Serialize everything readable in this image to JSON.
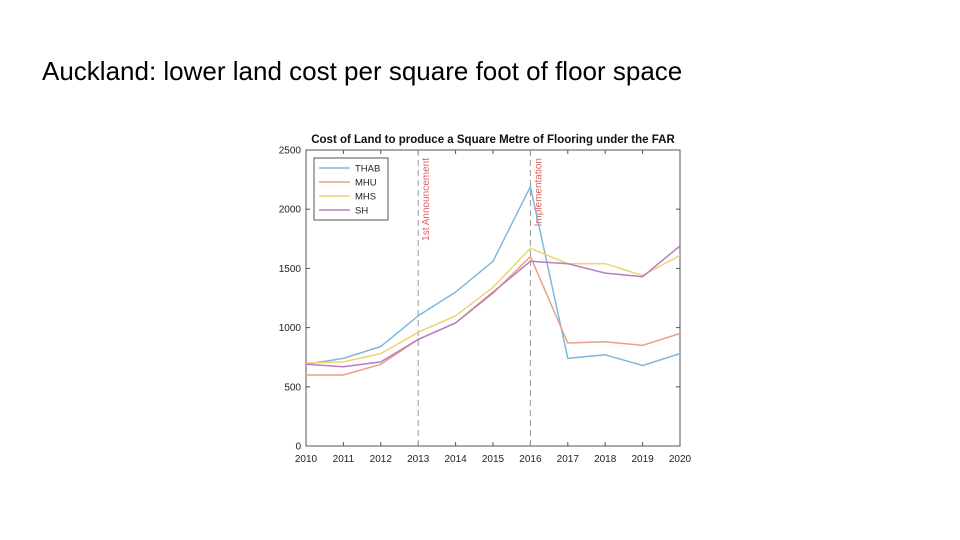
{
  "slide": {
    "title": "Auckland: lower land cost per square foot of floor space"
  },
  "chart_data": {
    "type": "line",
    "title": "Cost of Land to produce a Square Metre of Flooring under the FAR",
    "xlabel": "",
    "ylabel": "",
    "x": [
      2010,
      2011,
      2012,
      2013,
      2014,
      2015,
      2016,
      2017,
      2018,
      2019,
      2020
    ],
    "xlim": [
      2010,
      2020
    ],
    "ylim": [
      0,
      2500
    ],
    "yticks": [
      0,
      500,
      1000,
      1500,
      2000,
      2500
    ],
    "grid": false,
    "legend_position": "top-left",
    "series": [
      {
        "name": "THAB",
        "color": "#7db9dc",
        "values": [
          690,
          740,
          840,
          1100,
          1300,
          1560,
          2190,
          740,
          770,
          680,
          780
        ]
      },
      {
        "name": "MHU",
        "color": "#e9a183",
        "values": [
          600,
          600,
          690,
          900,
          1040,
          1290,
          1600,
          870,
          880,
          850,
          950
        ]
      },
      {
        "name": "MHS",
        "color": "#f0d36e",
        "values": [
          700,
          710,
          780,
          960,
          1100,
          1340,
          1670,
          1540,
          1540,
          1440,
          1610
        ]
      },
      {
        "name": "SH",
        "color": "#b67ec0",
        "values": [
          690,
          670,
          710,
          900,
          1040,
          1300,
          1560,
          1540,
          1460,
          1430,
          1690
        ]
      }
    ],
    "annotations": [
      {
        "x": 2013,
        "label": "1st Announcement",
        "color": "#e06060",
        "style": "dashed"
      },
      {
        "x": 2016,
        "label": "Implementation",
        "color": "#e06060",
        "style": "dashed"
      }
    ]
  }
}
